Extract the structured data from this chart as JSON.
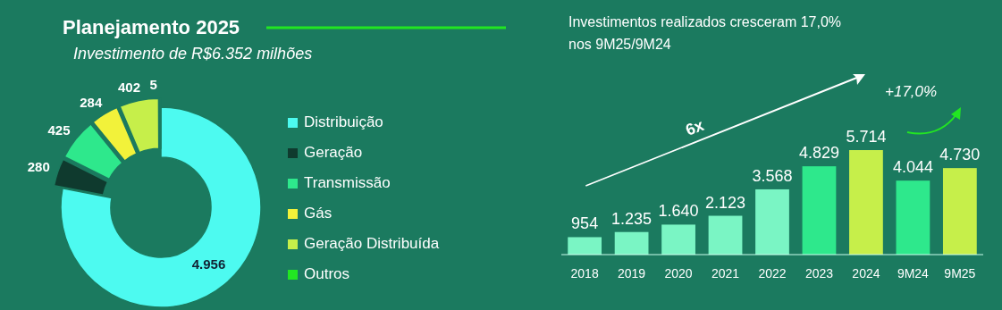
{
  "chart_data": [
    {
      "type": "donut",
      "title": "Planejamento 2025",
      "subtitle": "Investimento de R$6.352 milhões",
      "categories": [
        "Distribuição",
        "Geração",
        "Transmissão",
        "Gás",
        "Geração Distribuída",
        "Outros"
      ],
      "values": [
        4956,
        280,
        425,
        284,
        402,
        5
      ],
      "colors": [
        "#4dfaf0",
        "#0f3a2e",
        "#2ee88c",
        "#f2f23a",
        "#c6ef4a",
        "#22e622"
      ],
      "legend": "right",
      "data_labels": true,
      "value_labels": [
        "4.956",
        "280",
        "425",
        "284",
        "402",
        "5"
      ]
    },
    {
      "type": "bar",
      "title": "Investimentos realizados cresceram 17,0% nos 9M25/9M24",
      "categories": [
        "2018",
        "2019",
        "2020",
        "2021",
        "2022",
        "2023",
        "2024",
        "9M24",
        "9M25"
      ],
      "values": [
        954,
        1235,
        1640,
        2123,
        3568,
        4829,
        5714,
        4044,
        4730
      ],
      "colors": [
        "#7af5c4",
        "#7af5c4",
        "#7af5c4",
        "#7af5c4",
        "#7af5c4",
        "#2ee88c",
        "#c6ef4a",
        "#2ee88c",
        "#c6ef4a"
      ],
      "value_labels": [
        "954",
        "1.235",
        "1.640",
        "2.123",
        "3.568",
        "4.829",
        "5.714",
        "4.044",
        "4.730"
      ],
      "annotations": [
        "6x",
        "+17,0%"
      ]
    }
  ]
}
